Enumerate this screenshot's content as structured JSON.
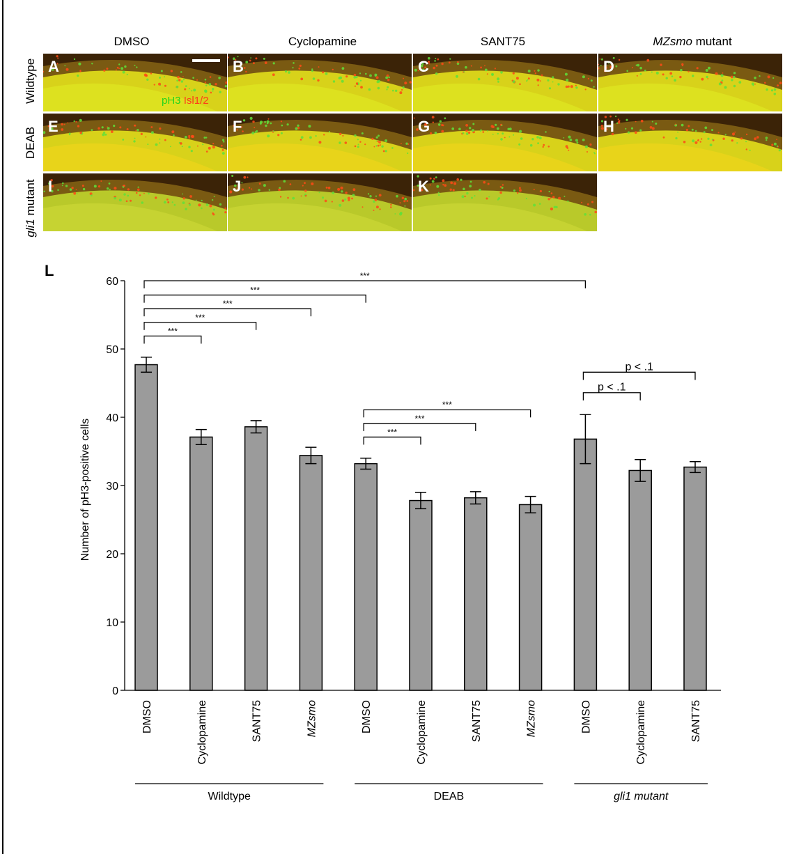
{
  "columns": [
    {
      "label": "DMSO",
      "italic": ""
    },
    {
      "label": "Cyclopamine",
      "italic": ""
    },
    {
      "label": "SANT75",
      "italic": ""
    },
    {
      "label": " mutant",
      "italic": "MZsmo"
    }
  ],
  "rows": [
    {
      "label": "Wildtype",
      "italic": "",
      "suffix": ""
    },
    {
      "label": "DEAB",
      "italic": "",
      "suffix": ""
    },
    {
      "label": "",
      "italic": "gli1",
      "suffix": " mutant"
    }
  ],
  "panels": [
    {
      "label": "A"
    },
    {
      "label": "B"
    },
    {
      "label": "C"
    },
    {
      "label": "D"
    },
    {
      "label": "E"
    },
    {
      "label": "F"
    },
    {
      "label": "G"
    },
    {
      "label": "H"
    },
    {
      "label": "I"
    },
    {
      "label": "J"
    },
    {
      "label": "K"
    }
  ],
  "stain": {
    "green": "pH3",
    "red": " Isl1/2",
    "green_color": "#22d41c",
    "red_color": "#ff3a1a"
  },
  "chart_label": "L",
  "chart_data": {
    "type": "bar",
    "ylabel": "Number of pH3-positive cells",
    "ylim": [
      0,
      60
    ],
    "yticks": [
      0,
      10,
      20,
      30,
      40,
      50,
      60
    ],
    "bar_color": "#9b9b9b",
    "bars": [
      {
        "label": "DMSO",
        "italic": false,
        "value": 47.7,
        "err": 1.1
      },
      {
        "label": "Cyclopamine",
        "italic": false,
        "value": 37.1,
        "err": 1.1
      },
      {
        "label": "SANT75",
        "italic": false,
        "value": 38.6,
        "err": 0.9
      },
      {
        "label": "MZsmo",
        "italic": true,
        "value": 34.4,
        "err": 1.2
      },
      {
        "label": "DMSO",
        "italic": false,
        "value": 33.2,
        "err": 0.8
      },
      {
        "label": "Cyclopamine",
        "italic": false,
        "value": 27.8,
        "err": 1.2
      },
      {
        "label": "SANT75",
        "italic": false,
        "value": 28.2,
        "err": 0.9
      },
      {
        "label": "MZsmo",
        "italic": true,
        "value": 27.2,
        "err": 1.2
      },
      {
        "label": "DMSO",
        "italic": false,
        "value": 36.8,
        "err": 3.6
      },
      {
        "label": "Cyclopamine",
        "italic": false,
        "value": 32.2,
        "err": 1.6
      },
      {
        "label": "SANT75",
        "italic": false,
        "value": 32.7,
        "err": 0.8
      }
    ],
    "groups": [
      {
        "label": "Wildtype",
        "italic": false,
        "from": 0,
        "to": 3
      },
      {
        "label": "DEAB",
        "italic": false,
        "from": 4,
        "to": 7
      },
      {
        "label": "gli1 mutant",
        "italic": true,
        "from": 8,
        "to": 10
      }
    ],
    "comparisons": [
      {
        "from": 0,
        "to": 8,
        "level": 60.0,
        "label": "***"
      },
      {
        "from": 0,
        "to": 4,
        "level": 57.9,
        "label": "***"
      },
      {
        "from": 0,
        "to": 3,
        "level": 55.9,
        "label": "***"
      },
      {
        "from": 0,
        "to": 2,
        "level": 53.9,
        "label": "***"
      },
      {
        "from": 0,
        "to": 1,
        "level": 51.9,
        "label": "***"
      },
      {
        "from": 4,
        "to": 7,
        "level": 41.1,
        "label": "***"
      },
      {
        "from": 4,
        "to": 6,
        "level": 39.1,
        "label": "***"
      },
      {
        "from": 4,
        "to": 5,
        "level": 37.1,
        "label": "***"
      },
      {
        "from": 8,
        "to": 10,
        "level": 46.6,
        "label": "p < .1"
      },
      {
        "from": 8,
        "to": 9,
        "level": 43.6,
        "label": "p < .1"
      }
    ]
  }
}
